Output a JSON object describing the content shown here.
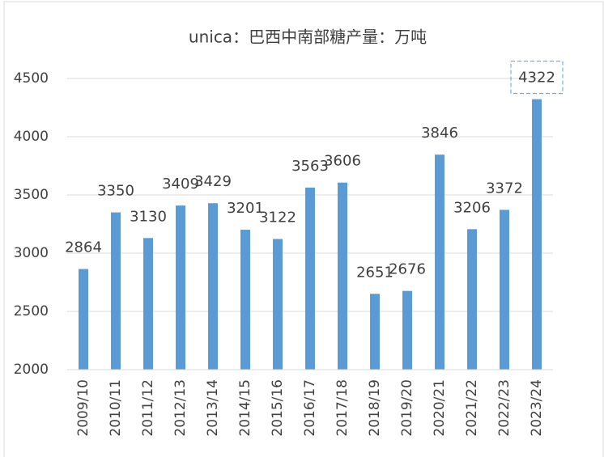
{
  "chart_data": {
    "type": "bar",
    "title": "unica：巴西中南部糖产量：万吨",
    "categories": [
      "2009/10",
      "2010/11",
      "2011/12",
      "2012/13",
      "2013/14",
      "2014/15",
      "2015/16",
      "2016/17",
      "2017/18",
      "2018/19",
      "2019/20",
      "2020/21",
      "2021/22",
      "2022/23",
      "2023/24"
    ],
    "values": [
      2864,
      3350,
      3130,
      3409,
      3429,
      3201,
      3122,
      3563,
      3606,
      2651,
      2676,
      3846,
      3206,
      3372,
      4322
    ],
    "color": "#5b9bd5",
    "ylim": [
      2000,
      4500
    ],
    "yticks": [
      2000,
      2500,
      3000,
      3500,
      4000,
      4500
    ],
    "grid": true
  }
}
